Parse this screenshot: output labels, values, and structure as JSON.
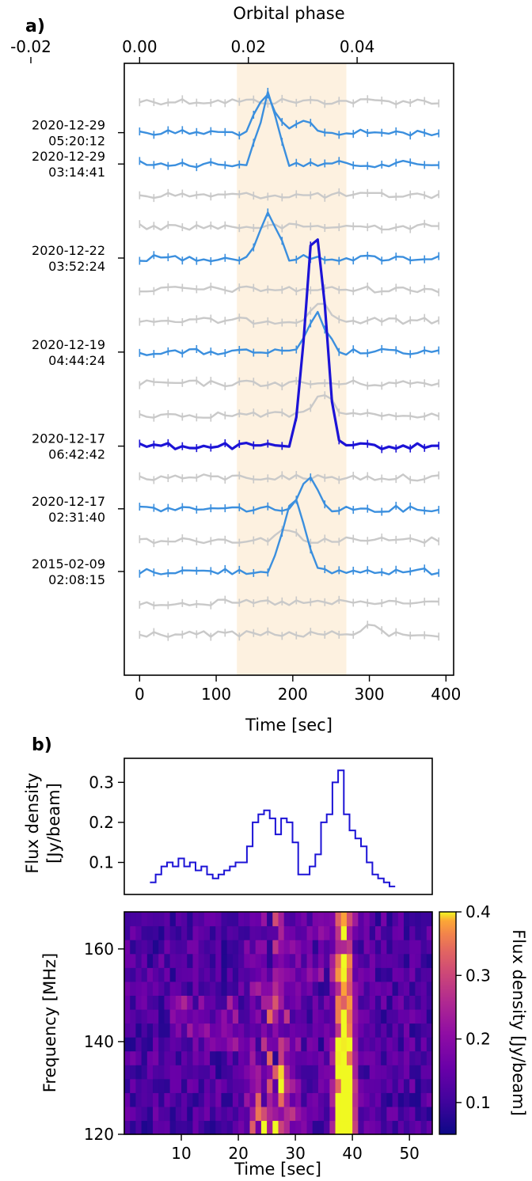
{
  "panel_a_label": "a)",
  "panel_b_label": "b)",
  "chart_data": [
    {
      "type": "line",
      "panel": "a)",
      "xlabel": "Time [sec]",
      "top_xlabel": "Orbital phase",
      "xlim": [
        -20,
        410
      ],
      "xticks": [
        0,
        100,
        200,
        300,
        400
      ],
      "top_ticks": [
        "-0.02",
        "0.00",
        "0.02",
        "0.04"
      ],
      "top_tick_times": [
        -142,
        0,
        142,
        284
      ],
      "highlight_window": [
        127,
        270
      ],
      "colors": {
        "gray": "#c9c9c9",
        "blue": "#3b8fde",
        "dark_blue": "#1c13d6",
        "highlight": "#fdf1e0"
      },
      "y_tick_labels": [
        {
          "line1": "2020-12-29",
          "line2": "05:20:12"
        },
        {
          "line1": "2020-12-29",
          "line2": "03:14:41"
        },
        {
          "line1": "2020-12-22",
          "line2": "03:52:24"
        },
        {
          "line1": "2020-12-19",
          "line2": "04:44:24"
        },
        {
          "line1": "2020-12-17",
          "line2": "06:42:42"
        },
        {
          "line1": "2020-12-17",
          "line2": "02:31:40"
        },
        {
          "line1": "2015-02-09",
          "line2": "02:08:15"
        }
      ],
      "traces": [
        {
          "color": "gray",
          "peaks": []
        },
        {
          "color": "blue",
          "peaks": [
            [
              165,
              50
            ],
            [
              215,
              15
            ]
          ]
        },
        {
          "color": "blue",
          "peaks": [
            [
              168,
              90
            ]
          ]
        },
        {
          "color": "gray",
          "peaks": []
        },
        {
          "color": "gray",
          "peaks": []
        },
        {
          "color": "blue",
          "peaks": [
            [
              168,
              60
            ]
          ]
        },
        {
          "color": "gray",
          "peaks": []
        },
        {
          "color": "gray",
          "peaks": [
            [
              235,
              25
            ]
          ]
        },
        {
          "color": "blue",
          "peaks": [
            [
              232,
              50
            ]
          ]
        },
        {
          "color": "gray",
          "peaks": []
        },
        {
          "color": "gray",
          "peaks": [
            [
              240,
              30
            ]
          ]
        },
        {
          "color": "dark_blue",
          "peaks": [
            [
              225,
              180
            ],
            [
              235,
              150
            ]
          ]
        },
        {
          "color": "gray",
          "peaks": []
        },
        {
          "color": "blue",
          "peaks": [
            [
              222,
              40
            ]
          ]
        },
        {
          "color": "gray",
          "peaks": [
            [
              190,
              15
            ]
          ]
        },
        {
          "color": "blue",
          "peaks": [
            [
              193,
              55
            ],
            [
              207,
              65
            ]
          ]
        },
        {
          "color": "gray",
          "peaks": []
        },
        {
          "color": "gray",
          "peaks": [
            [
              300,
              10
            ]
          ]
        }
      ]
    },
    {
      "type": "line",
      "panel": "b) top",
      "ylabel": "Flux density [Jy/beam]",
      "ylim": [
        0.02,
        0.36
      ],
      "yticks": [
        "0.1",
        "0.2",
        "0.3"
      ],
      "xlim": [
        0,
        54
      ],
      "x": [
        5,
        6,
        7,
        8,
        9,
        10,
        11,
        12,
        13,
        14,
        15,
        16,
        17,
        18,
        19,
        20,
        21,
        22,
        23,
        24,
        25,
        26,
        27,
        28,
        29,
        30,
        31,
        32,
        33,
        34,
        35,
        36,
        37,
        38,
        39,
        40,
        41,
        42,
        43,
        44,
        45,
        46,
        47
      ],
      "y": [
        0.05,
        0.07,
        0.09,
        0.1,
        0.09,
        0.11,
        0.09,
        0.1,
        0.08,
        0.09,
        0.07,
        0.06,
        0.07,
        0.08,
        0.09,
        0.1,
        0.1,
        0.14,
        0.2,
        0.22,
        0.23,
        0.21,
        0.17,
        0.21,
        0.2,
        0.15,
        0.07,
        0.07,
        0.09,
        0.12,
        0.2,
        0.22,
        0.3,
        0.33,
        0.22,
        0.18,
        0.16,
        0.14,
        0.1,
        0.07,
        0.06,
        0.05,
        0.04
      ]
    },
    {
      "type": "heatmap",
      "panel": "b) bottom",
      "xlabel": "Time [sec]",
      "ylabel": "Frequency [MHz]",
      "xlim": [
        0,
        54
      ],
      "ylim": [
        120,
        168
      ],
      "xticks": [
        "10",
        "20",
        "30",
        "40",
        "50"
      ],
      "yticks": [
        "120",
        "140",
        "160"
      ],
      "colorbar_label": "Flux density [Jy/beam]",
      "colorbar_ticks": [
        "0.1",
        "0.2",
        "0.3",
        "0.4"
      ],
      "colorbar_range": [
        0.05,
        0.4
      ]
    }
  ]
}
